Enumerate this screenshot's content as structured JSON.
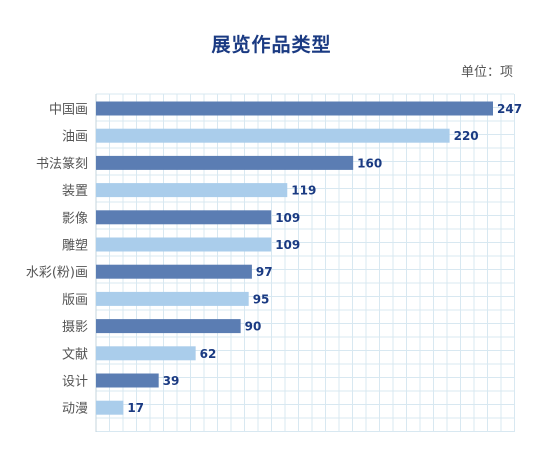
{
  "title": "展览作品类型",
  "unit_label": "单位：项",
  "colors": {
    "dark_bar": "#5b7db3",
    "light_bar": "#aacdeb",
    "value_text": "#1a3a82",
    "grid": "#d8e8f1"
  },
  "chart_data": {
    "type": "bar",
    "orientation": "horizontal",
    "title": "展览作品类型",
    "unit": "单位：项",
    "categories": [
      "中国画",
      "油画",
      "书法篆刻",
      "装置",
      "影像",
      "雕塑",
      "水彩(粉)画",
      "版画",
      "摄影",
      "文献",
      "设计",
      "动漫"
    ],
    "values": [
      247,
      220,
      160,
      119,
      109,
      109,
      97,
      95,
      90,
      62,
      39,
      17
    ],
    "bar_colors": [
      "#5b7db3",
      "#aacdeb",
      "#5b7db3",
      "#aacdeb",
      "#5b7db3",
      "#aacdeb",
      "#5b7db3",
      "#aacdeb",
      "#5b7db3",
      "#aacdeb",
      "#5b7db3",
      "#aacdeb"
    ],
    "xlim": [
      0,
      247
    ],
    "grid": true,
    "legend": "none"
  }
}
